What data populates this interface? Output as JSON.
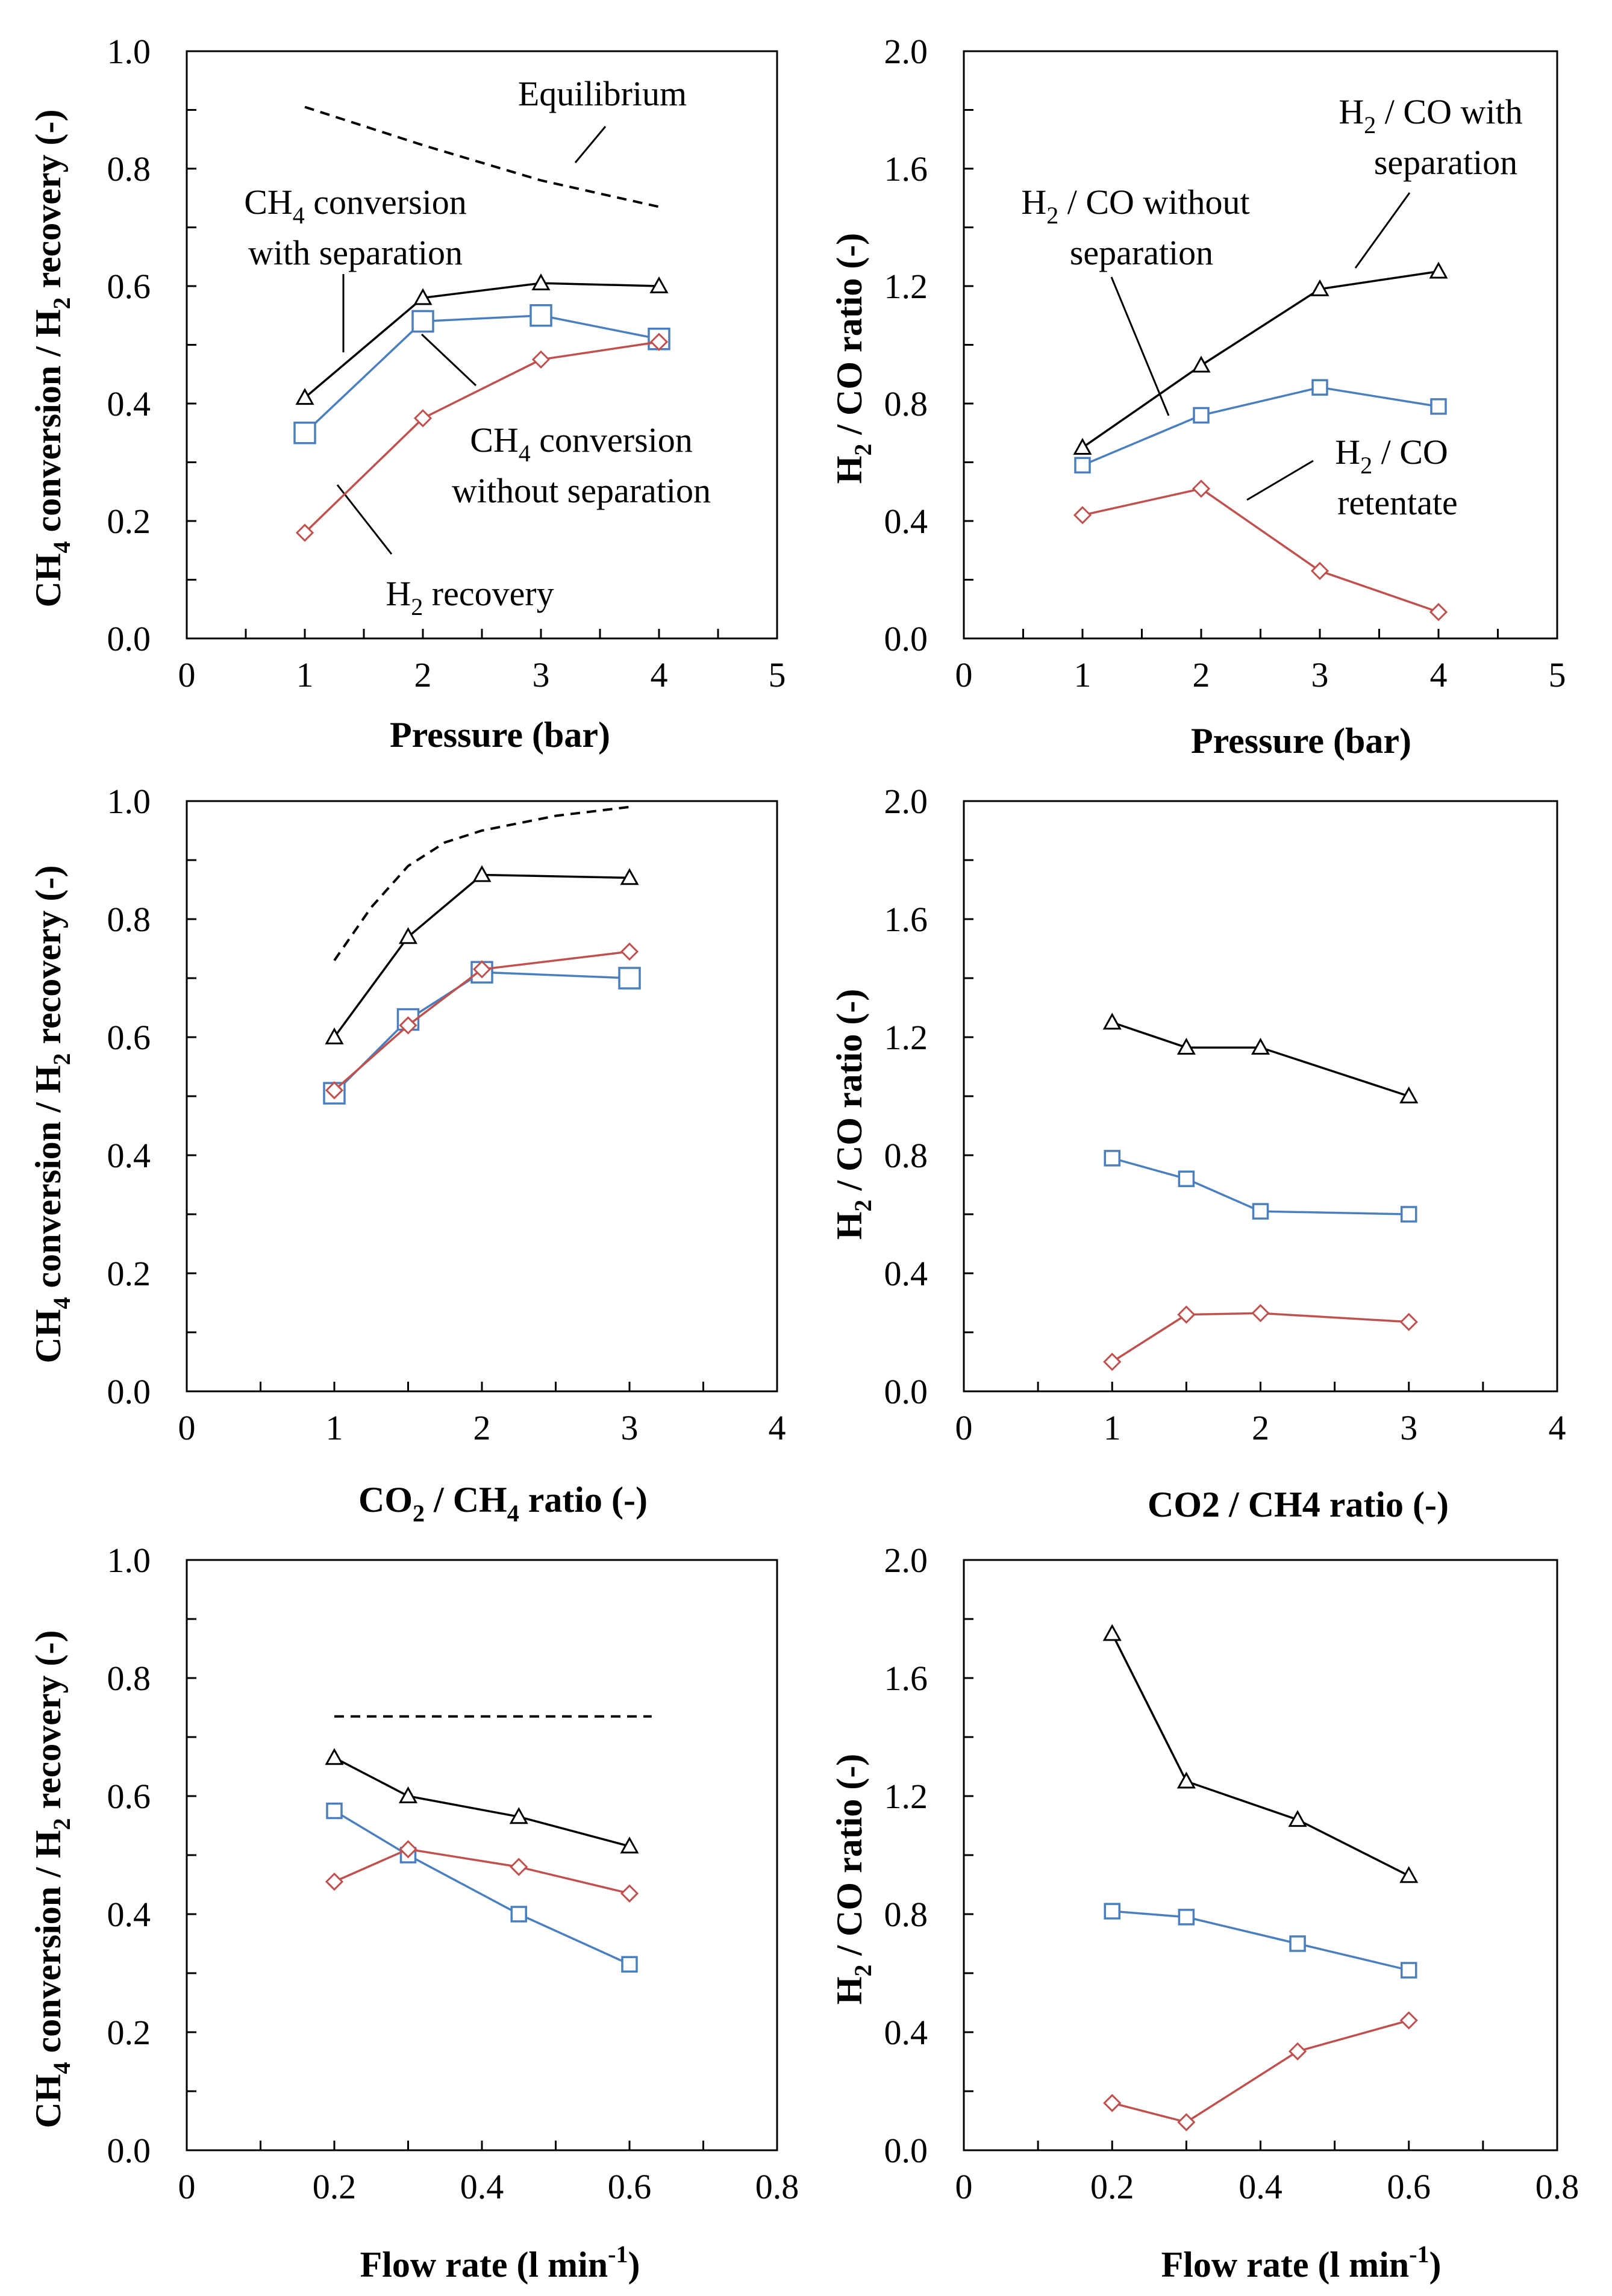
{
  "colors": {
    "with_separation": "#000000",
    "without_separation": "#4a7fbf",
    "retentate_recovery": "#c0504d",
    "equilibrium": "#000000"
  },
  "chart_data": [
    {
      "id": "a",
      "type": "line",
      "xlabel": "Pressure (bar)",
      "ylabel_parts": {
        "t1": "CH",
        "s1": "4",
        "t2": " conversion / H",
        "s2": "2",
        "t3": " recovery (-)"
      },
      "xlim": [
        0,
        5
      ],
      "ylim": [
        0,
        1
      ],
      "xticks": [
        "0",
        "1",
        "2",
        "3",
        "4",
        "5"
      ],
      "yticks": [
        "0.0",
        "0.2",
        "0.4",
        "0.6",
        "0.8",
        "1.0"
      ],
      "series": [
        {
          "name": "CH4 conversion with separation",
          "marker": "triangle",
          "color": "#000000",
          "x": [
            1,
            2,
            3,
            4
          ],
          "y": [
            0.41,
            0.58,
            0.605,
            0.6
          ]
        },
        {
          "name": "CH4 conversion without separation",
          "marker": "square",
          "color": "#4a7fbf",
          "x": [
            1,
            2,
            3,
            4
          ],
          "y": [
            0.35,
            0.54,
            0.55,
            0.51
          ]
        },
        {
          "name": "H2 recovery",
          "marker": "diamond",
          "color": "#c0504d",
          "x": [
            1,
            2,
            3,
            4
          ],
          "y": [
            0.18,
            0.375,
            0.475,
            0.505
          ]
        },
        {
          "name": "Equilibrium",
          "marker": "none",
          "dashed": true,
          "color": "#000000",
          "x": [
            1,
            2,
            3,
            4
          ],
          "y": [
            0.905,
            0.84,
            0.78,
            0.735
          ]
        }
      ],
      "annotations": [
        {
          "id": "equilibrium",
          "parts": {
            "t1": "Equilibrium"
          }
        },
        {
          "id": "conv-with-sep",
          "parts": {
            "t1": "CH",
            "s1": "4",
            "t2": " conversion",
            "t3": "with separation"
          }
        },
        {
          "id": "conv-without-sep",
          "parts": {
            "t1": "CH",
            "s1": "4",
            "t2": " conversion",
            "t3": "without separation"
          }
        },
        {
          "id": "h2-recovery",
          "parts": {
            "t1": "H",
            "s1": "2",
            "t2": " recovery"
          }
        }
      ]
    },
    {
      "id": "b",
      "type": "line",
      "xlabel": "Pressure (bar)",
      "ylabel_parts": {
        "t1": "H",
        "s1": "2",
        "t2": " / CO ratio (-)"
      },
      "xlim": [
        0,
        5
      ],
      "ylim": [
        0,
        2
      ],
      "xticks": [
        "0",
        "1",
        "2",
        "3",
        "4",
        "5"
      ],
      "yticks": [
        "0.0",
        "0.4",
        "0.8",
        "1.2",
        "1.6",
        "2.0"
      ],
      "series": [
        {
          "name": "H2 / CO with separation",
          "marker": "triangle",
          "color": "#000000",
          "x": [
            1,
            2,
            3,
            4
          ],
          "y": [
            0.65,
            0.93,
            1.19,
            1.25
          ]
        },
        {
          "name": "H2 / CO without separation",
          "marker": "square",
          "color": "#4a7fbf",
          "x": [
            1,
            2,
            3,
            4
          ],
          "y": [
            0.59,
            0.76,
            0.855,
            0.79
          ]
        },
        {
          "name": "H2 / CO retentate",
          "marker": "diamond",
          "color": "#c0504d",
          "x": [
            1,
            2,
            3,
            4
          ],
          "y": [
            0.42,
            0.51,
            0.23,
            0.09
          ]
        }
      ],
      "annotations": [
        {
          "id": "ratio-with-sep",
          "parts": {
            "t1": "H",
            "s1": "2",
            "t2": " / CO with",
            "t3": "separation"
          }
        },
        {
          "id": "ratio-without-sep",
          "parts": {
            "t1": "H",
            "s1": "2",
            "t2": " / CO without",
            "t3": "separation"
          }
        },
        {
          "id": "ratio-retentate",
          "parts": {
            "t1": "H",
            "s1": "2",
            "t2": " / CO",
            "t3": "retentate"
          }
        }
      ]
    },
    {
      "id": "c",
      "type": "line",
      "xlabel_parts": {
        "t1": "CO",
        "s1": "2",
        "t2": " / CH",
        "s2": "4",
        "t3": " ratio (-)"
      },
      "ylabel_parts": {
        "t1": "CH",
        "s1": "4",
        "t2": " conversion / H",
        "s2": "2",
        "t3": " recovery (-)"
      },
      "xlim": [
        0,
        4
      ],
      "ylim": [
        0,
        1
      ],
      "xticks": [
        "0",
        "1",
        "2",
        "3",
        "4"
      ],
      "yticks": [
        "0.0",
        "0.2",
        "0.4",
        "0.6",
        "0.8",
        "1.0"
      ],
      "series": [
        {
          "name": "CH4 conversion with separation",
          "marker": "triangle",
          "color": "#000000",
          "x": [
            1,
            1.5,
            2,
            3
          ],
          "y": [
            0.6,
            0.77,
            0.875,
            0.87
          ]
        },
        {
          "name": "CH4 conversion without separation",
          "marker": "square",
          "color": "#4a7fbf",
          "x": [
            1,
            1.5,
            2,
            3
          ],
          "y": [
            0.505,
            0.63,
            0.71,
            0.7
          ]
        },
        {
          "name": "H2 recovery",
          "marker": "diamond",
          "color": "#c0504d",
          "x": [
            1,
            1.5,
            2,
            3
          ],
          "y": [
            0.51,
            0.62,
            0.715,
            0.745
          ]
        },
        {
          "name": "Equilibrium",
          "marker": "none",
          "dashed": true,
          "color": "#000000",
          "x": [
            1,
            1.25,
            1.5,
            1.75,
            2,
            2.5,
            3
          ],
          "y": [
            0.73,
            0.82,
            0.89,
            0.93,
            0.95,
            0.975,
            0.99
          ]
        }
      ],
      "annotations": []
    },
    {
      "id": "d",
      "type": "line",
      "xlabel": "CO2 / CH4 ratio (-)",
      "ylabel_parts": {
        "t1": "H",
        "s1": "2",
        "t2": " / CO ratio (-)"
      },
      "xlim": [
        0,
        4
      ],
      "ylim": [
        0,
        2
      ],
      "xticks": [
        "0",
        "1",
        "2",
        "3",
        "4"
      ],
      "yticks": [
        "0.0",
        "0.4",
        "0.8",
        "1.2",
        "1.6",
        "2.0"
      ],
      "series": [
        {
          "name": "H2 / CO with separation",
          "marker": "triangle",
          "color": "#000000",
          "x": [
            1,
            1.5,
            2,
            3
          ],
          "y": [
            1.25,
            1.165,
            1.165,
            1.0
          ]
        },
        {
          "name": "H2 / CO without separation",
          "marker": "square",
          "color": "#4a7fbf",
          "x": [
            1,
            1.5,
            2,
            3
          ],
          "y": [
            0.79,
            0.72,
            0.61,
            0.6
          ]
        },
        {
          "name": "H2 / CO retentate",
          "marker": "diamond",
          "color": "#c0504d",
          "x": [
            1,
            1.5,
            2,
            3
          ],
          "y": [
            0.1,
            0.26,
            0.265,
            0.235
          ]
        }
      ],
      "annotations": []
    },
    {
      "id": "e",
      "type": "line",
      "xlabel_parts": {
        "t1": "Flow rate (l min",
        "s1": "-1",
        "t2": ")"
      },
      "ylabel_parts": {
        "t1": "CH",
        "s1": "4",
        "t2": " conversion / H",
        "s2": "2",
        "t3": " recovery (-)"
      },
      "xlim": [
        0,
        0.8
      ],
      "ylim": [
        0,
        1
      ],
      "xticks": [
        "0",
        "0.2",
        "0.4",
        "0.6",
        "0.8"
      ],
      "yticks": [
        "0.0",
        "0.2",
        "0.4",
        "0.6",
        "0.8",
        "1.0"
      ],
      "series": [
        {
          "name": "CH4 conversion with separation",
          "marker": "triangle",
          "color": "#000000",
          "x": [
            0.2,
            0.3,
            0.45,
            0.6
          ],
          "y": [
            0.665,
            0.6,
            0.565,
            0.515
          ]
        },
        {
          "name": "CH4 conversion without separation",
          "marker": "square",
          "color": "#4a7fbf",
          "x": [
            0.2,
            0.3,
            0.45,
            0.6
          ],
          "y": [
            0.575,
            0.5,
            0.4,
            0.315
          ]
        },
        {
          "name": "H2 recovery",
          "marker": "diamond",
          "color": "#c0504d",
          "x": [
            0.2,
            0.3,
            0.45,
            0.6
          ],
          "y": [
            0.455,
            0.51,
            0.48,
            0.435
          ]
        },
        {
          "name": "Equilibrium",
          "marker": "none",
          "dashed": true,
          "color": "#000000",
          "x": [
            0.2,
            0.63
          ],
          "y": [
            0.735,
            0.735
          ]
        }
      ],
      "annotations": []
    },
    {
      "id": "f",
      "type": "line",
      "xlabel_parts": {
        "t1": "Flow rate (l min",
        "s1": "-1",
        "t2": ")"
      },
      "ylabel_parts": {
        "t1": "H",
        "s1": "2",
        "t2": " / CO ratio (-)"
      },
      "xlim": [
        0,
        0.8
      ],
      "ylim": [
        0,
        2
      ],
      "xticks": [
        "0",
        "0.2",
        "0.4",
        "0.6",
        "0.8"
      ],
      "yticks": [
        "0.0",
        "0.4",
        "0.8",
        "1.2",
        "1.6",
        "2.0"
      ],
      "series": [
        {
          "name": "H2 / CO with separation",
          "marker": "triangle",
          "color": "#000000",
          "x": [
            0.2,
            0.3,
            0.45,
            0.6
          ],
          "y": [
            1.75,
            1.25,
            1.12,
            0.93
          ]
        },
        {
          "name": "H2 / CO without separation",
          "marker": "square",
          "color": "#4a7fbf",
          "x": [
            0.2,
            0.3,
            0.45,
            0.6
          ],
          "y": [
            0.81,
            0.79,
            0.7,
            0.61
          ]
        },
        {
          "name": "H2 / CO retentate",
          "marker": "diamond",
          "color": "#c0504d",
          "x": [
            0.2,
            0.3,
            0.45,
            0.6
          ],
          "y": [
            0.16,
            0.095,
            0.335,
            0.44
          ]
        }
      ],
      "annotations": []
    }
  ]
}
